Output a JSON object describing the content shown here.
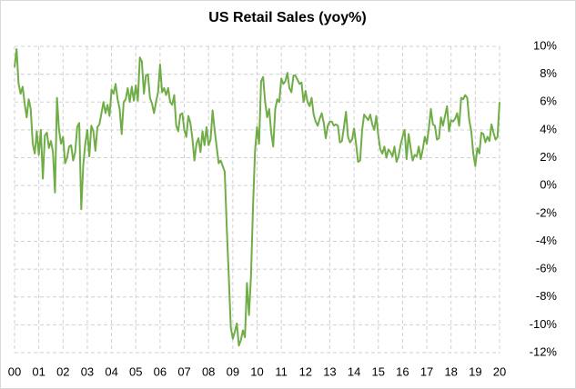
{
  "chart_data": {
    "type": "line",
    "title": "US Retail Sales (yoy%)",
    "categories": [
      "00",
      null,
      null,
      null,
      null,
      null,
      null,
      null,
      null,
      null,
      null,
      null,
      "01",
      null,
      null,
      null,
      null,
      null,
      null,
      null,
      null,
      null,
      null,
      null,
      "02",
      null,
      null,
      null,
      null,
      null,
      null,
      null,
      null,
      null,
      null,
      null,
      "03",
      null,
      null,
      null,
      null,
      null,
      null,
      null,
      null,
      null,
      null,
      null,
      "04",
      null,
      null,
      null,
      null,
      null,
      null,
      null,
      null,
      null,
      null,
      null,
      "05",
      null,
      null,
      null,
      null,
      null,
      null,
      null,
      null,
      null,
      null,
      null,
      "06",
      null,
      null,
      null,
      null,
      null,
      null,
      null,
      null,
      null,
      null,
      null,
      "07",
      null,
      null,
      null,
      null,
      null,
      null,
      null,
      null,
      null,
      null,
      null,
      "08",
      null,
      null,
      null,
      null,
      null,
      null,
      null,
      null,
      null,
      null,
      null,
      "09",
      null,
      null,
      null,
      null,
      null,
      null,
      null,
      null,
      null,
      null,
      null,
      "10",
      null,
      null,
      null,
      null,
      null,
      null,
      null,
      null,
      null,
      null,
      null,
      "11",
      null,
      null,
      null,
      null,
      null,
      null,
      null,
      null,
      null,
      null,
      null,
      "12",
      null,
      null,
      null,
      null,
      null,
      null,
      null,
      null,
      null,
      null,
      null,
      "13",
      null,
      null,
      null,
      null,
      null,
      null,
      null,
      null,
      null,
      null,
      null,
      "14",
      null,
      null,
      null,
      null,
      null,
      null,
      null,
      null,
      null,
      null,
      null,
      "15",
      null,
      null,
      null,
      null,
      null,
      null,
      null,
      null,
      null,
      null,
      null,
      "16",
      null,
      null,
      null,
      null,
      null,
      null,
      null,
      null,
      null,
      null,
      null,
      "17",
      null,
      null,
      null,
      null,
      null,
      null,
      null,
      null,
      null,
      null,
      null,
      "18",
      null,
      null,
      null,
      null,
      null,
      null,
      null,
      null,
      null,
      null,
      null,
      "19",
      null,
      null,
      null,
      null,
      null,
      null,
      null,
      null,
      null,
      null,
      null,
      "20"
    ],
    "series": [
      {
        "name": "US Retail Sales (yoy%)",
        "color": "#70ad47",
        "values": [
          8.5,
          9.8,
          7.3,
          6.6,
          7.1,
          5.9,
          4.9,
          6.2,
          5.5,
          3.0,
          2.3,
          3.9,
          2.2,
          4.0,
          0.5,
          3.6,
          3.8,
          2.7,
          3.2,
          2.4,
          -0.5,
          6.3,
          4.0,
          3.0,
          3.5,
          1.6,
          2.0,
          2.8,
          2.9,
          1.8,
          2.4,
          4.2,
          4.5,
          -1.7,
          1.5,
          3.0,
          4.0,
          2.1,
          4.3,
          3.9,
          2.5,
          4.2,
          4.4,
          5.2,
          6.0,
          5.2,
          5.8,
          5.0,
          6.9,
          6.6,
          7.3,
          6.2,
          5.5,
          3.7,
          6.0,
          6.2,
          7.0,
          6.0,
          7.1,
          6.1,
          7.2,
          6.1,
          9.2,
          8.9,
          6.6,
          7.9,
          8.0,
          6.3,
          5.9,
          5.2,
          6.0,
          6.7,
          8.7,
          6.7,
          7.0,
          6.5,
          7.0,
          6.0,
          5.8,
          6.5,
          4.3,
          3.9,
          5.1,
          5.2,
          4.0,
          3.5,
          5.0,
          4.5,
          3.4,
          1.8,
          3.0,
          3.4,
          2.4,
          3.9,
          2.9,
          4.2,
          2.9,
          3.3,
          5.4,
          4.0,
          2.8,
          1.6,
          1.8,
          1.4,
          1.0,
          -3.0,
          -6.5,
          -10.2,
          -11.0,
          -10.5,
          -9.9,
          -11.5,
          -11.1,
          -10.4,
          -10.9,
          -7.0,
          -9.3,
          -6.5,
          -1.5,
          2.5,
          4.2,
          3.0,
          7.5,
          7.8,
          6.0,
          4.9,
          5.5,
          3.8,
          2.8,
          5.5,
          6.2,
          6.0,
          7.7,
          7.3,
          7.5,
          8.1,
          7.0,
          6.7,
          7.9,
          7.9,
          7.6,
          7.3,
          7.4,
          6.0,
          6.8,
          6.0,
          5.7,
          6.3,
          5.1,
          4.6,
          4.3,
          4.8,
          5.2,
          4.5,
          3.4,
          4.3,
          4.6,
          4.6,
          4.3,
          4.4,
          4.3,
          3.1,
          3.2,
          4.2,
          5.3,
          3.5,
          3.1,
          3.3,
          4.1,
          3.0,
          1.7,
          1.8,
          4.0,
          5.1,
          4.9,
          4.7,
          5.1,
          4.4,
          4.0,
          5.0,
          3.6,
          2.6,
          2.3,
          2.8,
          2.0,
          2.6,
          2.4,
          2.1,
          2.8,
          1.7,
          2.1,
          2.9,
          3.5,
          4.0,
          1.9,
          3.7,
          2.7,
          1.8,
          2.2,
          2.1,
          2.8,
          1.9,
          2.6,
          3.5,
          3.0,
          4.1,
          5.5,
          4.4,
          4.3,
          3.3,
          3.4,
          4.9,
          4.3,
          5.0,
          5.7,
          3.9,
          4.7,
          4.6,
          4.8,
          5.2,
          4.3,
          6.3,
          6.2,
          6.5,
          6.3,
          4.7,
          3.9,
          2.3,
          1.4,
          2.7,
          2.3,
          3.8,
          3.7,
          3.1,
          3.5,
          3.2,
          4.4,
          3.8,
          3.3,
          3.5,
          6.0
        ]
      }
    ],
    "ylim": [
      -12,
      10
    ],
    "yticks": [
      {
        "value": -12,
        "label": "-12%"
      },
      {
        "value": -10,
        "label": "-10%"
      },
      {
        "value": -8,
        "label": "-8%"
      },
      {
        "value": -6,
        "label": "-6%"
      },
      {
        "value": -4,
        "label": "-4%"
      },
      {
        "value": -2,
        "label": "-2%"
      },
      {
        "value": 0,
        "label": "0%"
      },
      {
        "value": 2,
        "label": "2%"
      },
      {
        "value": 4,
        "label": "4%"
      },
      {
        "value": 6,
        "label": "6%"
      },
      {
        "value": 8,
        "label": "8%"
      },
      {
        "value": 10,
        "label": "10%"
      }
    ],
    "grid": true
  }
}
